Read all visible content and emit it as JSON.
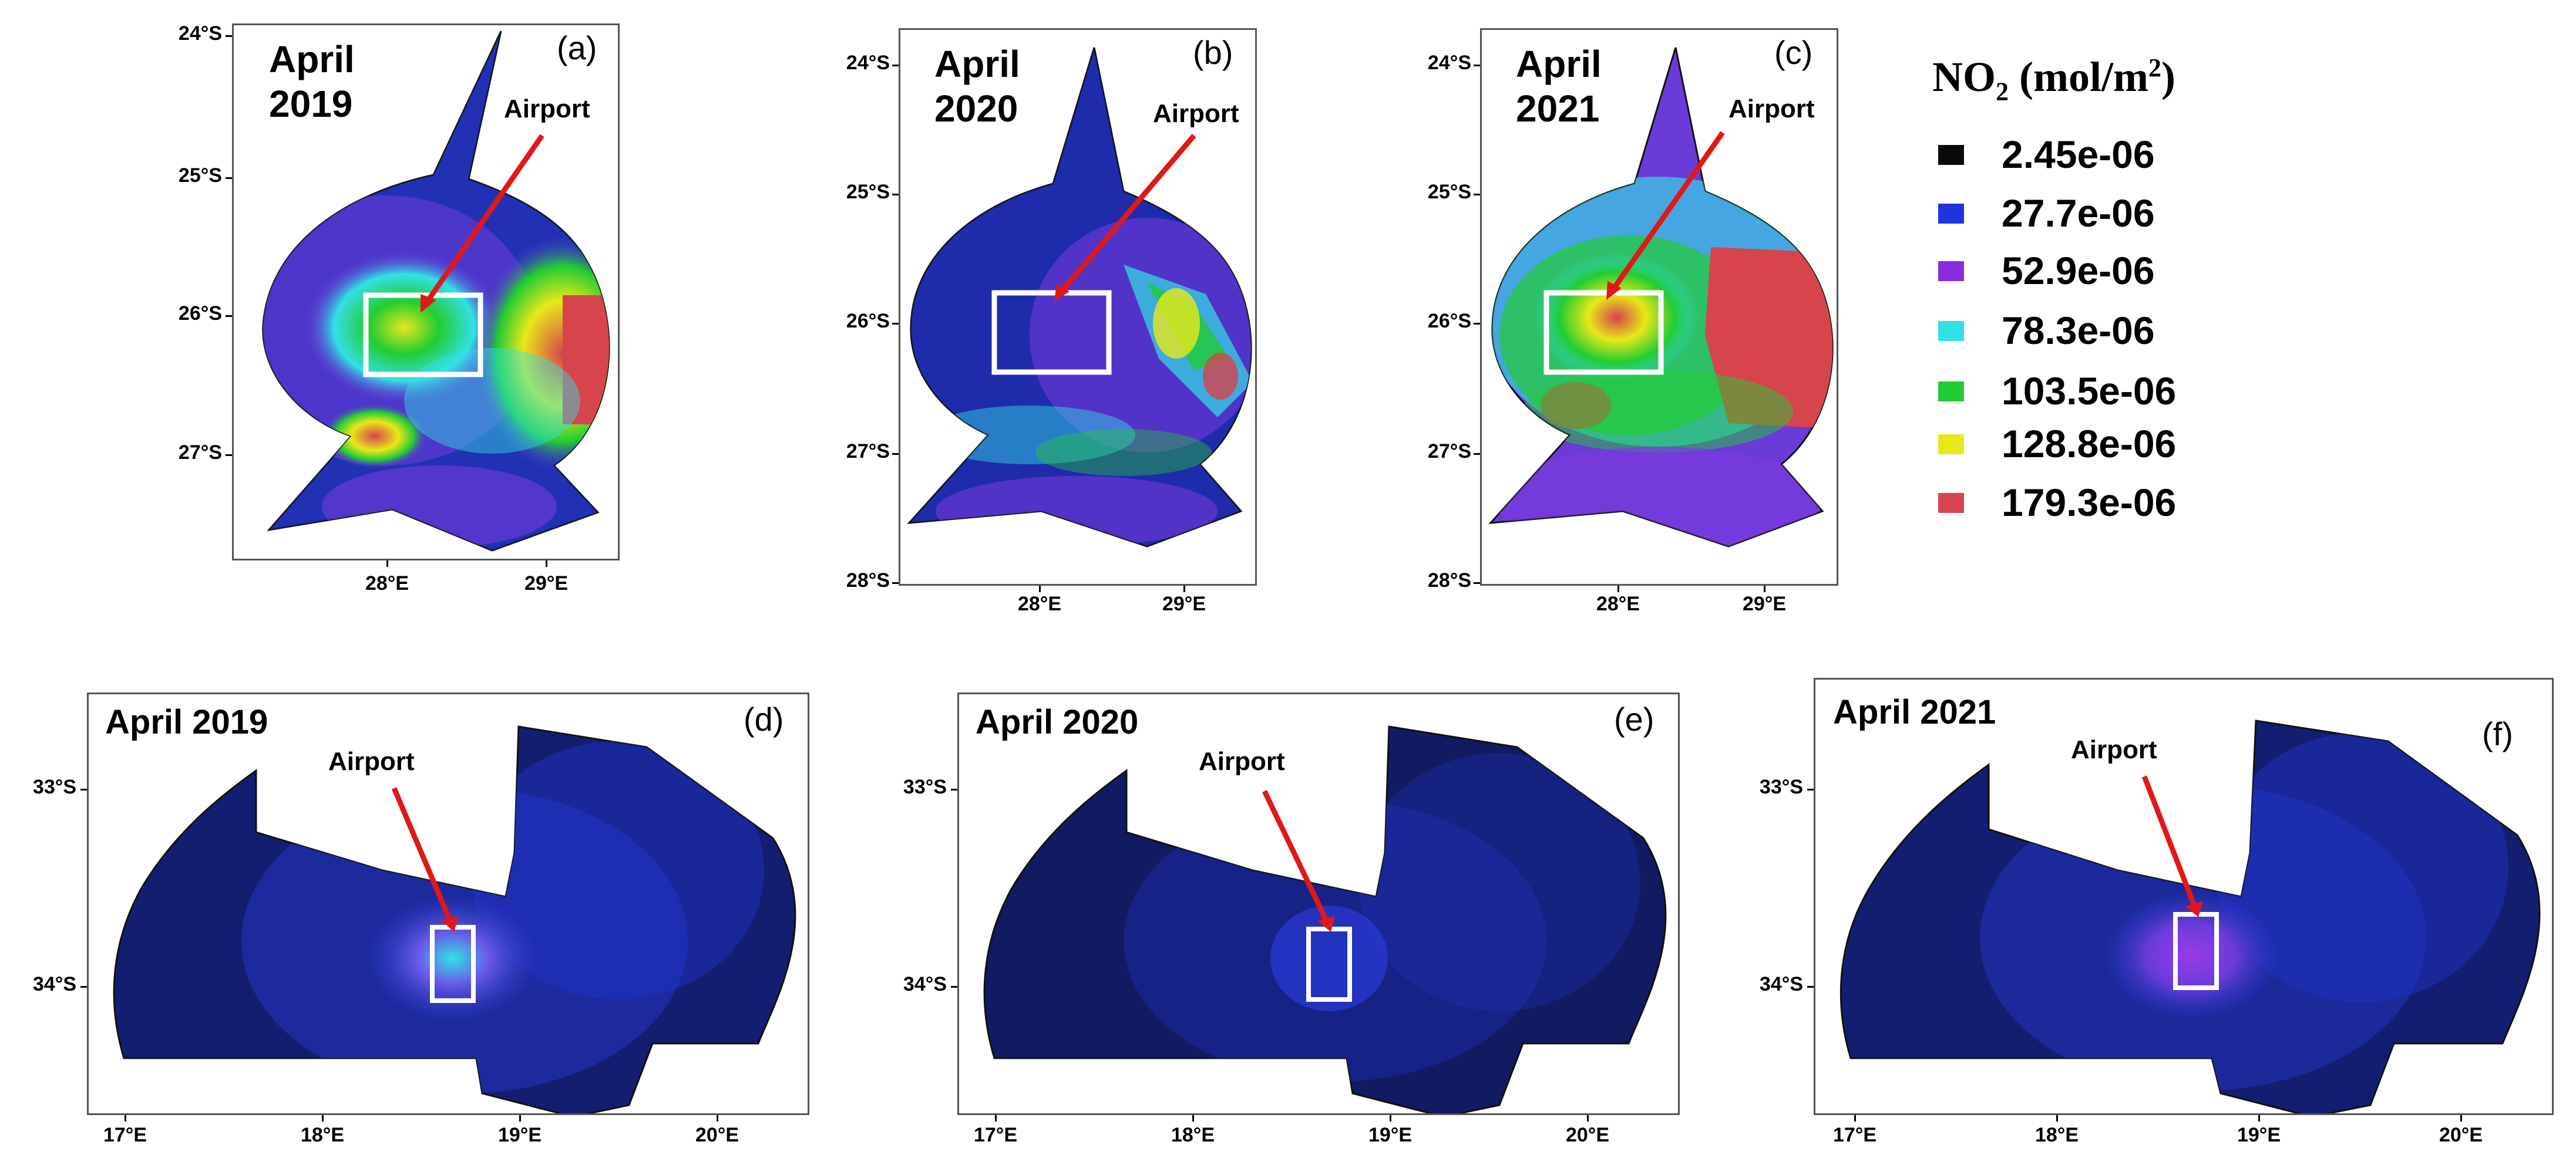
{
  "legend": {
    "title_main": "NO",
    "title_sub": "2",
    "title_unit_open": " (mol/m",
    "title_unit_sup": "2",
    "title_unit_close": ")",
    "items": [
      {
        "label": "2.45e-06",
        "color": "#0a0a0a"
      },
      {
        "label": "27.7e-06",
        "color": "#2233dd"
      },
      {
        "label": "52.9e-06",
        "color": "#8a2be2"
      },
      {
        "label": "78.3e-06",
        "color": "#33e0e6"
      },
      {
        "label": "103.5e-06",
        "color": "#22cc33"
      },
      {
        "label": "128.8e-06",
        "color": "#e8e81a"
      },
      {
        "label": "179.3e-06",
        "color": "#d6444c"
      }
    ]
  },
  "marker_color": "#e01818",
  "box_color": "#ffffff",
  "panels": {
    "a": {
      "tag": "(a)",
      "title_line1": "April",
      "title_line2": "2019",
      "airport_label": "Airport",
      "y_ticks": [
        "24°S",
        "25°S",
        "26°S",
        "27°S"
      ],
      "x_ticks": [
        "28°E",
        "29°E"
      ]
    },
    "b": {
      "tag": "(b)",
      "title_line1": "April",
      "title_line2": "2020",
      "airport_label": "Airport",
      "y_ticks": [
        "24°S",
        "25°S",
        "26°S",
        "27°S",
        "28°S"
      ],
      "x_ticks": [
        "28°E",
        "29°E"
      ]
    },
    "c": {
      "tag": "(c)",
      "title_line1": "April",
      "title_line2": "2021",
      "airport_label": "Airport",
      "y_ticks": [
        "24°S",
        "25°S",
        "26°S",
        "27°S",
        "28°S"
      ],
      "x_ticks": [
        "28°E",
        "29°E"
      ]
    },
    "d": {
      "tag": "(d)",
      "title": "April 2019",
      "airport_label": "Airport",
      "y_ticks": [
        "33°S",
        "34°S"
      ],
      "x_ticks": [
        "17°E",
        "18°E",
        "19°E",
        "20°E"
      ]
    },
    "e": {
      "tag": "(e)",
      "title": "April 2020",
      "airport_label": "Airport",
      "y_ticks": [
        "33°S",
        "34°S"
      ],
      "x_ticks": [
        "17°E",
        "18°E",
        "19°E",
        "20°E"
      ]
    },
    "f": {
      "tag": "(f)",
      "title": "April 2021",
      "airport_label": "Airport",
      "y_ticks": [
        "33°S",
        "34°S"
      ],
      "x_ticks": [
        "17°E",
        "18°E",
        "19°E",
        "20°E"
      ]
    }
  }
}
